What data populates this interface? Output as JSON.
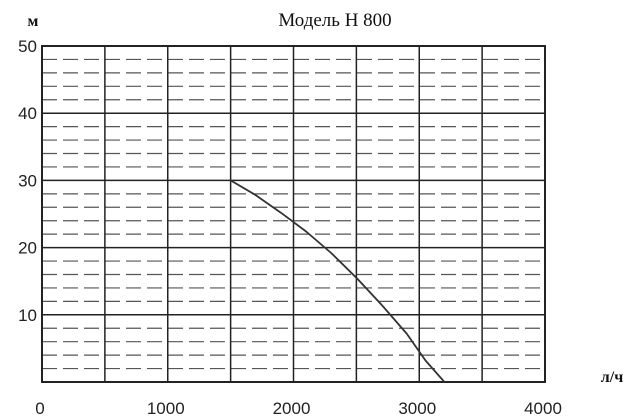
{
  "chart_data": {
    "type": "line",
    "title": "Модель Н 800",
    "ylabel": "м",
    "xlabel": "л/ч",
    "xlim": [
      0,
      4000
    ],
    "ylim": [
      0,
      50
    ],
    "x_ticks": [
      0,
      1000,
      2000,
      3000,
      4000
    ],
    "y_ticks": [
      10,
      20,
      30,
      40,
      50
    ],
    "grid": true,
    "series": [
      {
        "x": [
          1500,
          1700,
          1900,
          2100,
          2300,
          2500,
          2700,
          2900,
          3050,
          3200
        ],
        "y": [
          30,
          27.8,
          25.2,
          22.4,
          19.2,
          15.5,
          11.5,
          7.2,
          3.2,
          0
        ]
      }
    ]
  }
}
